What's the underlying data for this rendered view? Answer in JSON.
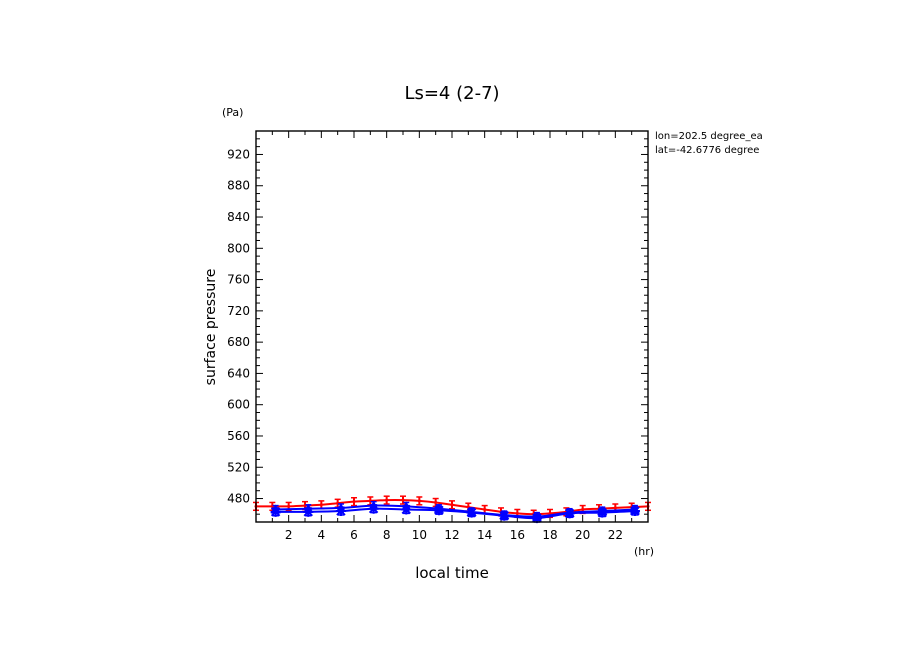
{
  "chart_data": {
    "type": "line",
    "title": "Ls=4 (2-7)",
    "xlabel": "local time",
    "xunit": "(hr)",
    "ylabel": "surface pressure",
    "yunit": "(Pa)",
    "annotations": [
      "lon=202.5 degree_ea",
      "lat=-42.6776 degree"
    ],
    "xlim": [
      0,
      24
    ],
    "ylim": [
      450,
      950
    ],
    "xticks": [
      2,
      4,
      6,
      8,
      10,
      12,
      14,
      16,
      18,
      20,
      22
    ],
    "yticks": [
      480,
      520,
      560,
      600,
      640,
      680,
      720,
      760,
      800,
      840,
      880,
      920
    ],
    "series": [
      {
        "color": "#ff0000",
        "marker": "errorbar",
        "x": [
          0,
          1,
          2,
          3,
          4,
          5,
          6,
          7,
          8,
          9,
          10,
          11,
          12,
          13,
          14,
          15,
          16,
          17,
          18,
          19,
          20,
          21,
          22,
          23,
          24
        ],
        "y": [
          470,
          470,
          470,
          471,
          472,
          474,
          476,
          477,
          478,
          478,
          477,
          475,
          472,
          469,
          466,
          463,
          461,
          460,
          461,
          463,
          466,
          467,
          468,
          469,
          470
        ],
        "err": [
          5,
          5,
          5,
          5,
          5,
          5,
          5,
          5,
          5,
          5,
          5,
          5,
          5,
          5,
          5,
          5,
          5,
          5,
          5,
          5,
          5,
          5,
          5,
          5,
          5
        ]
      },
      {
        "color": "#0000ff",
        "marker": "triangle",
        "x": [
          1.2,
          3.2,
          5.2,
          7.2,
          9.2,
          11.2,
          13.2,
          15.2,
          17.2,
          19.2,
          21.2,
          23.2
        ],
        "y": [
          466,
          467,
          468,
          471,
          470,
          467,
          463,
          459,
          457,
          462,
          464,
          466
        ],
        "err": [
          5,
          5,
          5,
          5,
          5,
          5,
          5,
          5,
          5,
          5,
          5,
          5
        ]
      },
      {
        "color": "#0000ff",
        "marker": "star",
        "x": [
          1.2,
          3.2,
          5.2,
          7.2,
          9.2,
          11.2,
          13.2,
          15.2,
          17.2,
          19.2,
          21.2,
          23.2
        ],
        "y": [
          463,
          463,
          464,
          467,
          466,
          465,
          462,
          458,
          455,
          461,
          462,
          464
        ],
        "err": [
          5,
          5,
          5,
          5,
          5,
          5,
          5,
          5,
          5,
          5,
          5,
          5
        ]
      }
    ]
  }
}
